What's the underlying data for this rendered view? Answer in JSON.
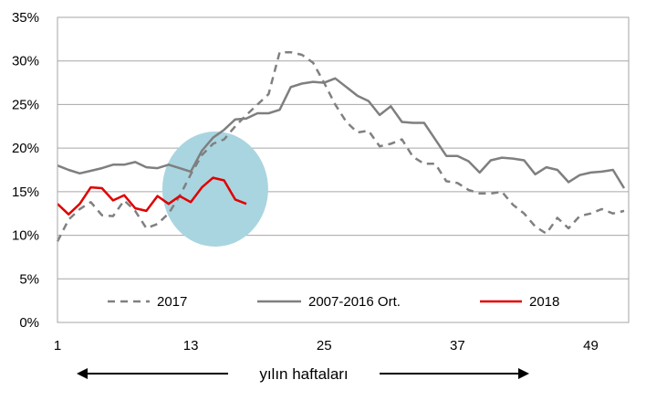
{
  "chart_data": {
    "type": "line",
    "x": [
      1,
      2,
      3,
      4,
      5,
      6,
      7,
      8,
      9,
      10,
      11,
      12,
      13,
      14,
      15,
      16,
      17,
      18,
      19,
      20,
      21,
      22,
      23,
      24,
      25,
      26,
      27,
      28,
      29,
      30,
      31,
      32,
      33,
      34,
      35,
      36,
      37,
      38,
      39,
      40,
      41,
      42,
      43,
      44,
      45,
      46,
      47,
      48,
      49,
      50,
      51,
      52
    ],
    "xticks": [
      1,
      13,
      25,
      37,
      49
    ],
    "xlim": [
      1,
      52
    ],
    "ylim": [
      0,
      35
    ],
    "yticks": [
      "0%",
      "5%",
      "10%",
      "15%",
      "20%",
      "25%",
      "30%",
      "35%"
    ],
    "series": [
      {
        "name": "2017",
        "style": "dashed",
        "color": "#808080",
        "values": [
          9.3,
          11.8,
          13.0,
          13.8,
          12.3,
          12.2,
          14.0,
          12.8,
          10.8,
          11.3,
          12.5,
          14.5,
          17.0,
          19.2,
          20.5,
          21.0,
          22.5,
          23.8,
          25.0,
          26.2,
          31.0,
          31.0,
          30.7,
          29.8,
          27.5,
          25.0,
          23.0,
          21.8,
          22.0,
          20.2,
          20.5,
          21.0,
          19.0,
          18.2,
          18.2,
          16.2,
          16.0,
          15.2,
          14.8,
          14.8,
          15.0,
          13.5,
          12.5,
          11.0,
          10.2,
          12.0,
          10.8,
          12.2,
          12.5,
          13.0,
          12.5,
          12.8
        ]
      },
      {
        "name": "2007-2016 Ort.",
        "style": "solid",
        "color": "#7f7f7f",
        "values": [
          18.0,
          17.5,
          17.1,
          17.4,
          17.7,
          18.1,
          18.1,
          18.4,
          17.8,
          17.7,
          18.1,
          17.7,
          17.3,
          19.7,
          21.2,
          22.1,
          23.3,
          23.4,
          24.0,
          24.0,
          24.4,
          27.0,
          27.4,
          27.6,
          27.5,
          28.0,
          27.0,
          26.0,
          25.4,
          23.8,
          24.8,
          23.0,
          22.9,
          22.9,
          21.0,
          19.1,
          19.1,
          18.5,
          17.2,
          18.6,
          18.9,
          18.8,
          18.6,
          17.0,
          17.8,
          17.5,
          16.1,
          16.9,
          17.2,
          17.3,
          17.5,
          15.4
        ]
      },
      {
        "name": "2018",
        "style": "solid",
        "color": "#e00000",
        "values": [
          13.6,
          12.4,
          13.6,
          15.5,
          15.4,
          14.0,
          14.6,
          13.1,
          12.8,
          14.5,
          13.6,
          14.5,
          13.8,
          15.5,
          16.6,
          16.3,
          14.1,
          13.6,
          null,
          null,
          null,
          null,
          null,
          null,
          null,
          null,
          null,
          null,
          null,
          null,
          null,
          null,
          null,
          null,
          null,
          null,
          null,
          null,
          null,
          null,
          null,
          null,
          null,
          null,
          null,
          null,
          null,
          null,
          null,
          null,
          null,
          null
        ]
      }
    ],
    "annotation": {
      "type": "ellipse",
      "center": [
        15.2,
        15.3
      ],
      "color": "#a9d5e0"
    },
    "xlabel": "yılın haftaları",
    "grid": true,
    "legend": "bottom-inside"
  }
}
